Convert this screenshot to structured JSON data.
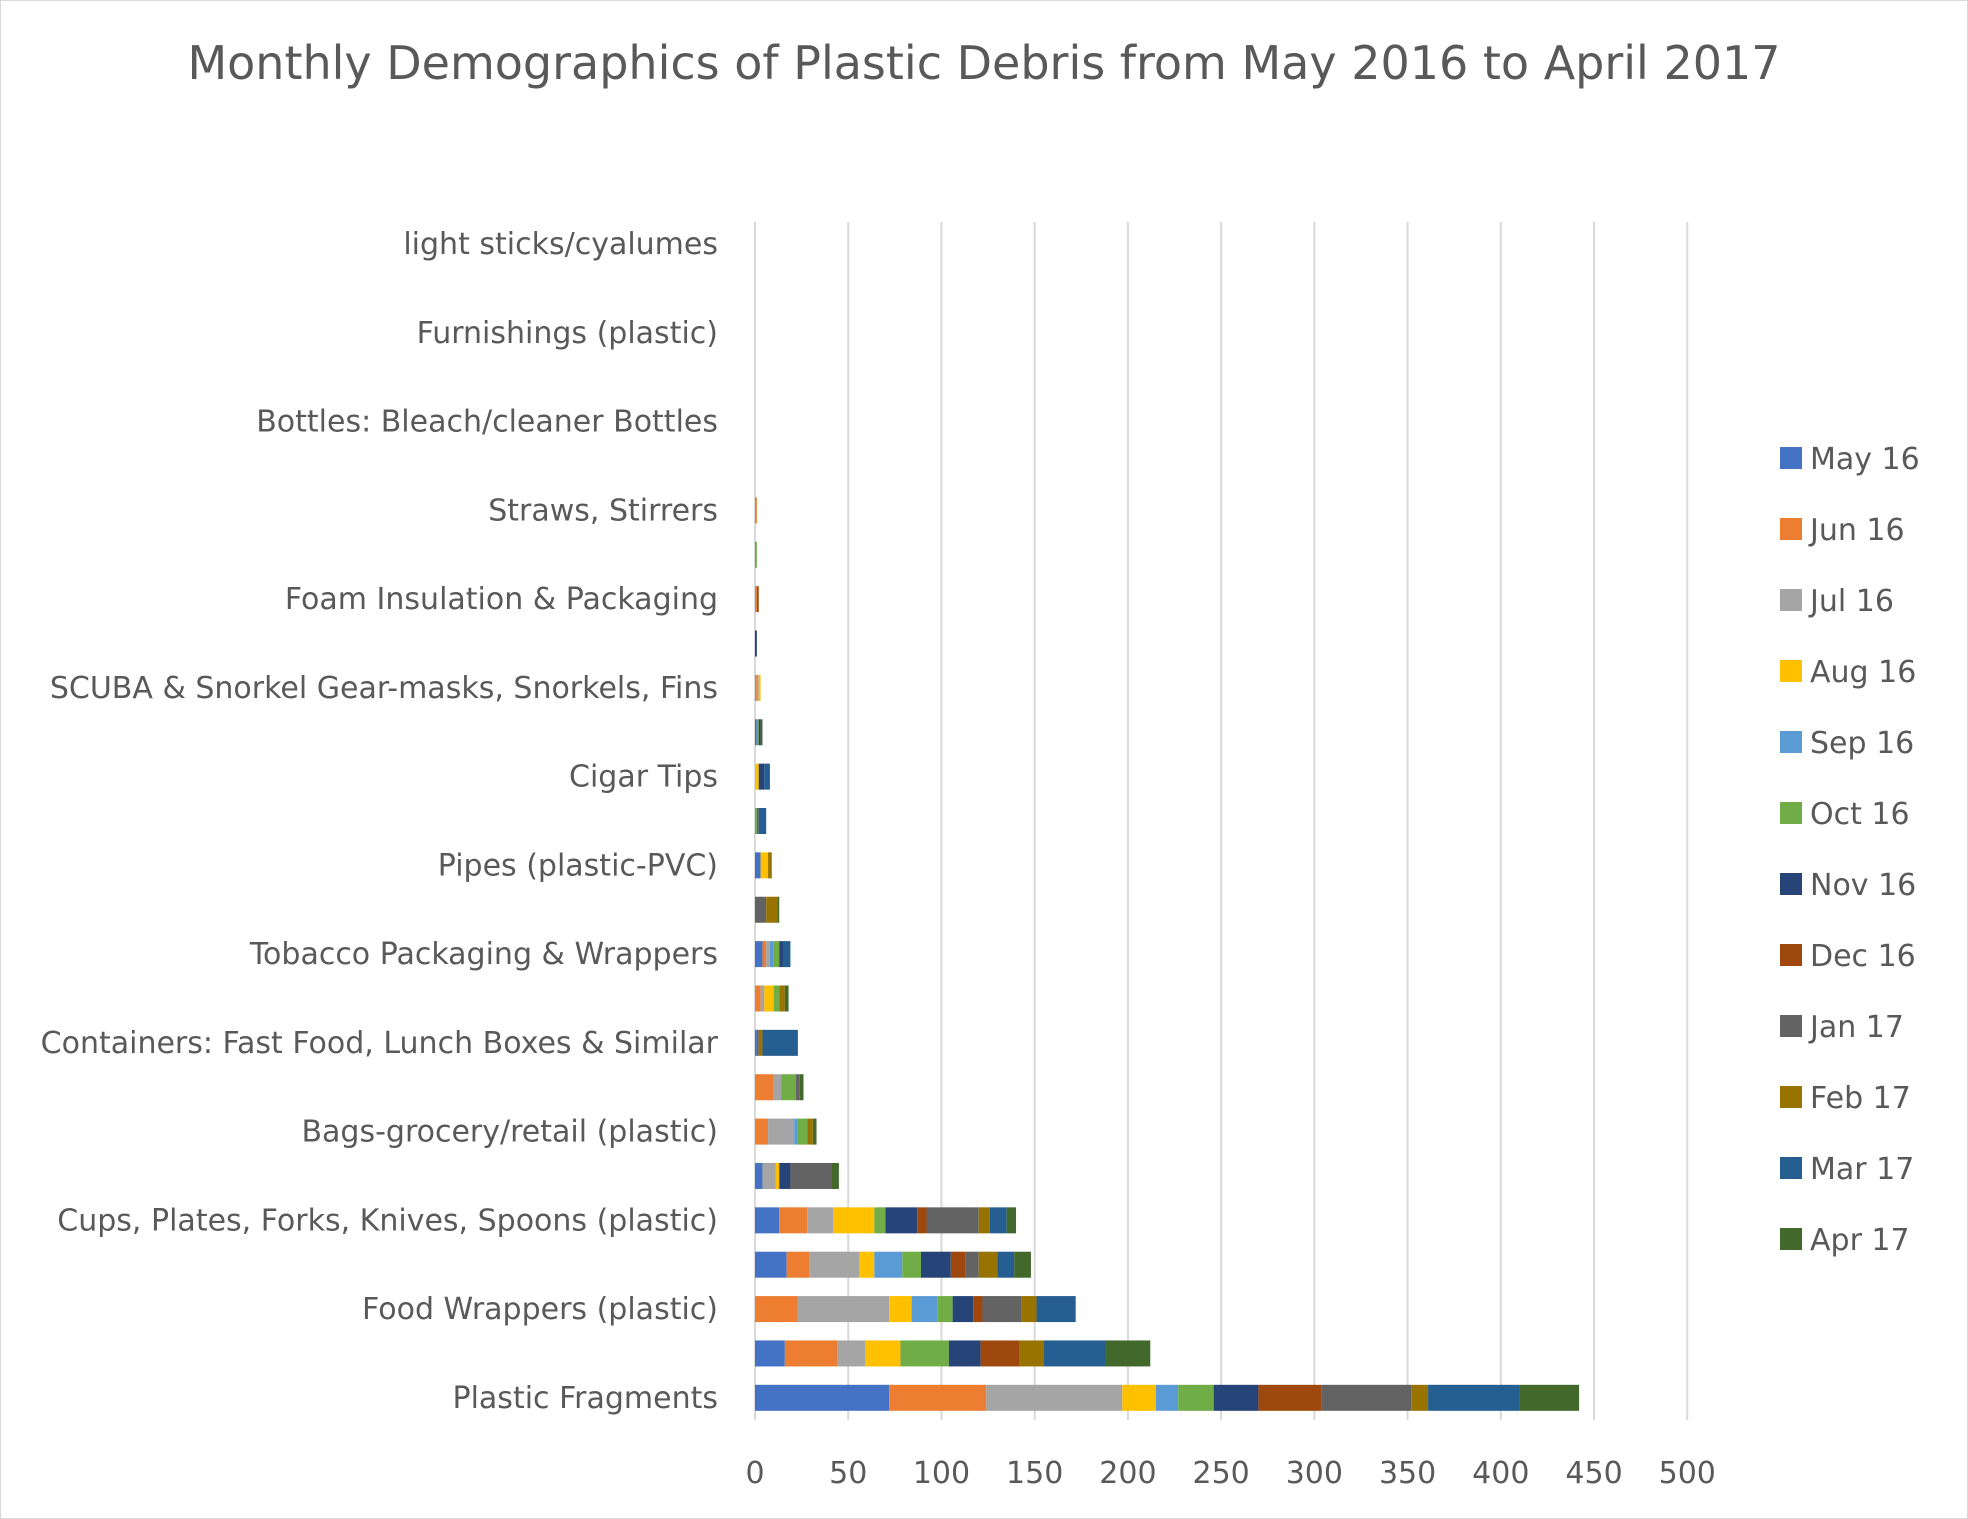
{
  "chart_data": {
    "type": "bar",
    "orientation": "horizontal",
    "stacked": true,
    "title": "Monthly Demographics of Plastic Debris from May 2016 to April 2017",
    "xlabel": "",
    "ylabel": "",
    "xlim": [
      0,
      500
    ],
    "x_ticks": [
      "0",
      "50",
      "100",
      "150",
      "200",
      "250",
      "300",
      "350",
      "400",
      "450",
      "500"
    ],
    "grid": "vertical",
    "legend_position": "right",
    "categories": [
      "Plastic Fragments",
      "",
      "Food Wrappers (plastic)",
      "",
      "Cups, Plates, Forks, Knives, Spoons (plastic)",
      "",
      "Bags-grocery/retail (plastic)",
      "",
      "Containers: Fast Food, Lunch Boxes & Similar",
      "",
      "Tobacco Packaging & Wrappers",
      "",
      "Pipes (plastic-PVC)",
      "",
      "Cigar Tips",
      "",
      "SCUBA & Snorkel Gear-masks, Snorkels, Fins",
      "",
      "Foam Insulation & Packaging",
      "",
      "Straws, Stirrers",
      "",
      "Bottles: Bleach/cleaner Bottles",
      "",
      "Furnishings (plastic)",
      "",
      "light sticks/cyalumes"
    ],
    "series": [
      {
        "name": "May 16",
        "color": "#4472C4",
        "values": [
          72,
          16,
          0,
          17,
          13,
          4,
          0,
          0,
          1,
          0,
          4,
          0,
          3,
          0,
          0,
          1,
          0,
          0,
          0,
          0,
          0,
          0,
          0,
          0,
          0,
          0,
          0
        ]
      },
      {
        "name": "Jun 16",
        "color": "#ED7D31",
        "values": [
          52,
          28,
          23,
          12,
          15,
          0,
          7,
          10,
          0,
          3,
          2,
          0,
          0,
          0,
          0,
          0,
          1,
          0,
          1,
          0,
          1,
          0,
          0,
          0,
          0,
          0,
          0
        ]
      },
      {
        "name": "Jul 16",
        "color": "#A5A5A5",
        "values": [
          73,
          15,
          49,
          27,
          14,
          7,
          14,
          4,
          0,
          2,
          2,
          0,
          0,
          0,
          0,
          0,
          1,
          0,
          0,
          0,
          0,
          0,
          0,
          0,
          0,
          0,
          0
        ]
      },
      {
        "name": "Aug 16",
        "color": "#FFC000",
        "values": [
          18,
          19,
          12,
          8,
          22,
          2,
          0,
          0,
          0,
          5,
          0,
          0,
          4,
          0,
          2,
          0,
          1,
          0,
          0,
          0,
          0,
          0,
          0,
          0,
          0,
          0,
          0
        ]
      },
      {
        "name": "Sep 16",
        "color": "#5B9BD5",
        "values": [
          12,
          0,
          14,
          15,
          0,
          0,
          2,
          0,
          0,
          0,
          2,
          0,
          0,
          0,
          0,
          0,
          0,
          0,
          0,
          0,
          0,
          0,
          0,
          0,
          0,
          0,
          0
        ]
      },
      {
        "name": "Oct 16",
        "color": "#70AD47",
        "values": [
          19,
          26,
          8,
          10,
          6,
          0,
          5,
          8,
          0,
          3,
          3,
          0,
          0,
          1,
          0,
          1,
          0,
          0,
          0,
          1,
          0,
          0,
          0,
          0,
          0,
          0,
          0
        ]
      },
      {
        "name": "Nov 16",
        "color": "#264478",
        "values": [
          24,
          17,
          11,
          16,
          17,
          6,
          0,
          0,
          0,
          0,
          2,
          0,
          0,
          0,
          3,
          1,
          0,
          1,
          0,
          0,
          0,
          0,
          0,
          0,
          0,
          0,
          0
        ]
      },
      {
        "name": "Dec 16",
        "color": "#9E480E",
        "values": [
          34,
          21,
          5,
          8,
          5,
          0,
          0,
          0,
          0,
          0,
          0,
          0,
          0,
          0,
          0,
          0,
          0,
          0,
          1,
          0,
          0,
          0,
          0,
          0,
          0,
          0,
          0
        ]
      },
      {
        "name": "Jan 17",
        "color": "#636363",
        "values": [
          48,
          0,
          21,
          7,
          28,
          22,
          0,
          2,
          1,
          0,
          0,
          6,
          0,
          1,
          0,
          0,
          0,
          0,
          0,
          0,
          0,
          0,
          0,
          0,
          0,
          0,
          0
        ]
      },
      {
        "name": "Feb 17",
        "color": "#997300",
        "values": [
          9,
          13,
          8,
          10,
          6,
          0,
          3,
          0,
          2,
          3,
          0,
          6,
          2,
          0,
          0,
          0,
          0,
          0,
          0,
          0,
          0,
          0,
          0,
          0,
          0,
          0,
          0
        ]
      },
      {
        "name": "Mar 17",
        "color": "#255E91",
        "values": [
          49,
          33,
          21,
          9,
          9,
          0,
          0,
          0,
          19,
          0,
          4,
          0,
          0,
          4,
          3,
          0,
          0,
          0,
          0,
          0,
          0,
          0,
          0,
          0,
          0,
          0,
          0
        ]
      },
      {
        "name": "Apr 17",
        "color": "#43682B",
        "values": [
          32,
          24,
          0,
          9,
          5,
          4,
          2,
          2,
          0,
          2,
          0,
          1,
          0,
          0,
          0,
          1,
          0,
          0,
          0,
          0,
          0,
          0,
          0,
          0,
          0,
          0,
          0
        ]
      }
    ]
  }
}
